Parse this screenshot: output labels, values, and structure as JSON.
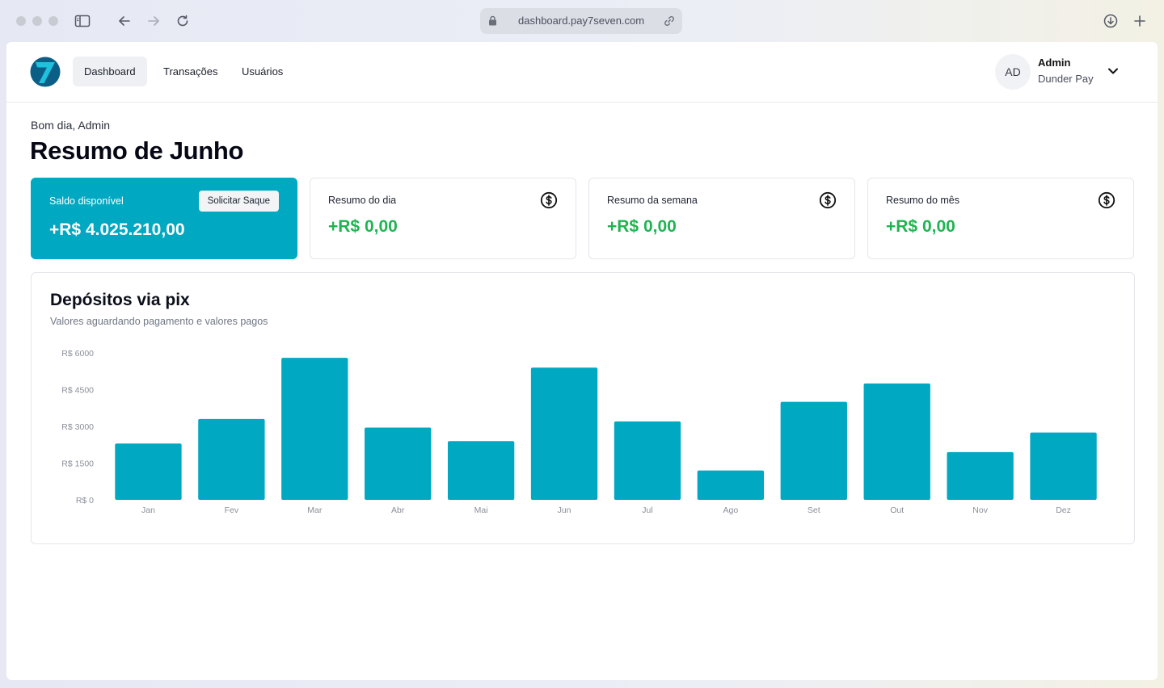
{
  "browser": {
    "url": "dashboard.pay7seven.com"
  },
  "nav": {
    "items": [
      {
        "label": "Dashboard",
        "active": true
      },
      {
        "label": "Transações",
        "active": false
      },
      {
        "label": "Usuários",
        "active": false
      }
    ]
  },
  "user": {
    "initials": "AD",
    "name": "Admin",
    "organization": "Dunder Pay"
  },
  "header": {
    "greeting": "Bom dia, Admin",
    "title": "Resumo de Junho"
  },
  "cards": {
    "balance": {
      "label": "Saldo disponível",
      "value": "+R$ 4.025.210,00",
      "button": "Solicitar Saque"
    },
    "day": {
      "label": "Resumo do dia",
      "value": "+R$ 0,00"
    },
    "week": {
      "label": "Resumo da semana",
      "value": "+R$ 0,00"
    },
    "month": {
      "label": "Resumo do mês",
      "value": "+R$ 0,00"
    }
  },
  "colors": {
    "accent": "#00a8c2",
    "positive": "#1fb451",
    "bar": "#00a8c2"
  },
  "chart_data": {
    "type": "bar",
    "title": "Depósitos via pix",
    "subtitle": "Valores aguardando pagamento e valores pagos",
    "categories": [
      "Jan",
      "Fev",
      "Mar",
      "Abr",
      "Mai",
      "Jun",
      "Jul",
      "Ago",
      "Set",
      "Out",
      "Nov",
      "Dez"
    ],
    "values": [
      2300,
      3300,
      5800,
      2950,
      2400,
      5400,
      3200,
      1200,
      4000,
      4750,
      1950,
      2750
    ],
    "yticks": [
      0,
      1500,
      3000,
      4500,
      6000
    ],
    "ytick_labels": [
      "R$ 0",
      "R$ 1500",
      "R$ 3000",
      "R$ 4500",
      "R$ 6000"
    ],
    "ylim": [
      0,
      6000
    ],
    "grid": false,
    "legend": "none"
  }
}
